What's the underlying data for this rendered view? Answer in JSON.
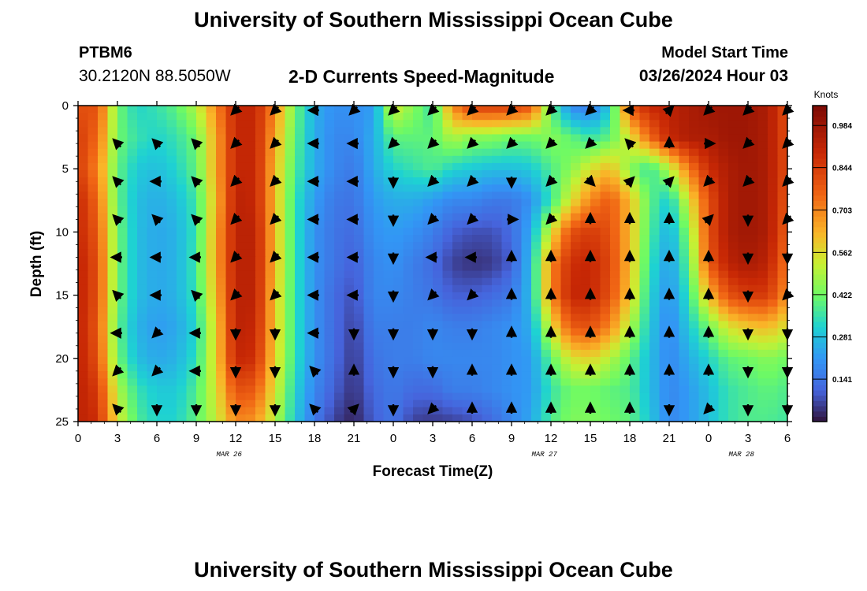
{
  "header": {
    "title": "University of Southern Mississippi Ocean Cube",
    "station_id": "PTBM6",
    "station_coords": "30.2120N  88.5050W",
    "plot_title": "2-D Currents Speed-Magnitude",
    "run_label": "Model Start Time",
    "run_value": "03/26/2024 Hour 03"
  },
  "footer": {
    "title": "University of Southern Mississippi Ocean Cube"
  },
  "chart_data": {
    "type": "heatmap",
    "xlabel": "Forecast Time(Z)",
    "ylabel": "Depth (ft)",
    "x_ticks": [
      "0",
      "3",
      "6",
      "9",
      "12",
      "15",
      "18",
      "21",
      "0",
      "3",
      "6",
      "9",
      "12",
      "15",
      "18",
      "21",
      "0",
      "3",
      "6"
    ],
    "x_range_hours": [
      0,
      54
    ],
    "date_labels": [
      {
        "label": "MAR 26",
        "hour": 11.5
      },
      {
        "label": "MAR 27",
        "hour": 35.5
      },
      {
        "label": "MAR 28",
        "hour": 50.5
      }
    ],
    "y_ticks": [
      0,
      5,
      10,
      15,
      20,
      25
    ],
    "y_range": [
      0,
      25
    ],
    "y_inverted": true,
    "colorbar": {
      "title": "Knots",
      "ticks": [
        "0.984",
        "0.844",
        "0.703",
        "0.562",
        "0.422",
        "0.281",
        "0.141"
      ],
      "tick_values": [
        0.984,
        0.844,
        0.703,
        0.562,
        0.422,
        0.281,
        0.141
      ],
      "min": 0.0,
      "max": 1.05
    },
    "speed_knots": {
      "hours": [
        0,
        1.5,
        3,
        4.5,
        6,
        7.5,
        9,
        10.5,
        12,
        13.5,
        15,
        16.5,
        18,
        19.5,
        21,
        22.5,
        24,
        25.5,
        27,
        28.5,
        30,
        31.5,
        33,
        34.5,
        36,
        37.5,
        39,
        40.5,
        42,
        43.5,
        45,
        46.5,
        48,
        49.5,
        51,
        52.5,
        54
      ],
      "depths": [
        0,
        2.5,
        5,
        7.5,
        10,
        12.5,
        15,
        17.5,
        20,
        22.5,
        25
      ],
      "rows": [
        [
          0.8,
          0.8,
          0.42,
          0.32,
          0.35,
          0.4,
          0.5,
          0.7,
          0.9,
          0.9,
          0.7,
          0.42,
          0.25,
          0.2,
          0.2,
          0.22,
          0.55,
          0.45,
          0.35,
          0.7,
          0.85,
          0.85,
          0.85,
          0.8,
          0.4,
          0.18,
          0.15,
          0.3,
          0.8,
          0.9,
          0.92,
          0.95,
          0.98,
          0.98,
          0.98,
          0.95,
          0.8
        ],
        [
          0.85,
          0.75,
          0.42,
          0.35,
          0.32,
          0.35,
          0.42,
          0.65,
          0.9,
          0.9,
          0.65,
          0.4,
          0.25,
          0.18,
          0.18,
          0.25,
          0.4,
          0.4,
          0.4,
          0.5,
          0.45,
          0.45,
          0.42,
          0.42,
          0.45,
          0.4,
          0.35,
          0.4,
          0.55,
          0.75,
          0.9,
          0.95,
          0.95,
          0.98,
          0.98,
          0.95,
          0.8
        ],
        [
          0.85,
          0.7,
          0.4,
          0.3,
          0.28,
          0.32,
          0.4,
          0.65,
          0.9,
          0.9,
          0.62,
          0.38,
          0.25,
          0.18,
          0.15,
          0.25,
          0.32,
          0.35,
          0.38,
          0.32,
          0.3,
          0.28,
          0.28,
          0.3,
          0.38,
          0.45,
          0.55,
          0.62,
          0.45,
          0.35,
          0.5,
          0.72,
          0.88,
          0.95,
          0.98,
          0.95,
          0.8
        ],
        [
          0.9,
          0.75,
          0.4,
          0.28,
          0.25,
          0.28,
          0.36,
          0.62,
          0.92,
          0.9,
          0.62,
          0.35,
          0.22,
          0.15,
          0.14,
          0.22,
          0.25,
          0.25,
          0.22,
          0.18,
          0.18,
          0.15,
          0.15,
          0.2,
          0.35,
          0.55,
          0.7,
          0.78,
          0.62,
          0.4,
          0.3,
          0.55,
          0.8,
          0.95,
          0.98,
          0.95,
          0.78
        ],
        [
          0.9,
          0.78,
          0.42,
          0.28,
          0.24,
          0.26,
          0.35,
          0.65,
          0.92,
          0.92,
          0.62,
          0.35,
          0.2,
          0.14,
          0.12,
          0.2,
          0.22,
          0.2,
          0.16,
          0.1,
          0.08,
          0.08,
          0.12,
          0.25,
          0.55,
          0.8,
          0.85,
          0.8,
          0.62,
          0.38,
          0.25,
          0.45,
          0.8,
          0.95,
          0.98,
          0.95,
          0.76
        ],
        [
          0.92,
          0.8,
          0.42,
          0.28,
          0.24,
          0.26,
          0.36,
          0.65,
          0.92,
          0.92,
          0.62,
          0.35,
          0.2,
          0.14,
          0.1,
          0.18,
          0.2,
          0.16,
          0.12,
          0.06,
          0.04,
          0.05,
          0.1,
          0.28,
          0.7,
          0.88,
          0.9,
          0.82,
          0.62,
          0.35,
          0.22,
          0.4,
          0.78,
          0.92,
          0.96,
          0.92,
          0.72
        ],
        [
          0.92,
          0.8,
          0.42,
          0.28,
          0.24,
          0.26,
          0.35,
          0.62,
          0.92,
          0.92,
          0.6,
          0.35,
          0.2,
          0.12,
          0.08,
          0.18,
          0.18,
          0.16,
          0.14,
          0.1,
          0.1,
          0.12,
          0.15,
          0.28,
          0.7,
          0.9,
          0.9,
          0.8,
          0.6,
          0.32,
          0.2,
          0.35,
          0.62,
          0.8,
          0.85,
          0.85,
          0.68
        ],
        [
          0.92,
          0.78,
          0.4,
          0.26,
          0.22,
          0.24,
          0.32,
          0.58,
          0.92,
          0.9,
          0.6,
          0.35,
          0.2,
          0.12,
          0.06,
          0.16,
          0.16,
          0.16,
          0.18,
          0.16,
          0.16,
          0.18,
          0.2,
          0.25,
          0.55,
          0.78,
          0.8,
          0.7,
          0.5,
          0.3,
          0.18,
          0.3,
          0.42,
          0.55,
          0.6,
          0.62,
          0.55
        ],
        [
          0.92,
          0.8,
          0.42,
          0.28,
          0.24,
          0.26,
          0.34,
          0.58,
          0.9,
          0.88,
          0.58,
          0.35,
          0.2,
          0.12,
          0.05,
          0.14,
          0.16,
          0.16,
          0.18,
          0.18,
          0.18,
          0.18,
          0.2,
          0.22,
          0.4,
          0.55,
          0.58,
          0.5,
          0.4,
          0.28,
          0.18,
          0.25,
          0.32,
          0.4,
          0.42,
          0.45,
          0.42
        ],
        [
          0.92,
          0.85,
          0.5,
          0.35,
          0.3,
          0.3,
          0.38,
          0.55,
          0.8,
          0.78,
          0.55,
          0.32,
          0.18,
          0.1,
          0.04,
          0.12,
          0.15,
          0.12,
          0.12,
          0.16,
          0.16,
          0.18,
          0.2,
          0.22,
          0.35,
          0.42,
          0.42,
          0.4,
          0.38,
          0.28,
          0.18,
          0.22,
          0.28,
          0.35,
          0.38,
          0.4,
          0.38
        ],
        [
          0.92,
          0.88,
          0.55,
          0.38,
          0.32,
          0.32,
          0.4,
          0.52,
          0.7,
          0.68,
          0.5,
          0.3,
          0.15,
          0.06,
          0.02,
          0.1,
          0.14,
          0.06,
          0.05,
          0.06,
          0.08,
          0.12,
          0.18,
          0.24,
          0.38,
          0.44,
          0.44,
          0.42,
          0.4,
          0.3,
          0.18,
          0.22,
          0.28,
          0.35,
          0.38,
          0.38,
          0.36
        ]
      ]
    },
    "vectors": {
      "hours": [
        3,
        6,
        9,
        12,
        15,
        18,
        21,
        24,
        27,
        30,
        33,
        36,
        39,
        42,
        45,
        48,
        51,
        54
      ],
      "depths": [
        0,
        3,
        6,
        9,
        12,
        15,
        18,
        21,
        24
      ],
      "dirs": [
        [
          null,
          null,
          null,
          "SW",
          "SW",
          "W",
          "SW",
          "SW",
          "SW",
          "SW",
          "SW",
          "SW",
          "SW",
          "W",
          "NE",
          "SW",
          "SW",
          "SW"
        ],
        [
          "NW",
          "NW",
          "NW",
          "SW",
          "SW",
          "W",
          "W",
          "SW",
          "SW",
          "SW",
          "SW",
          "SW",
          "SW",
          "NW",
          "N",
          "E",
          "SW",
          "SW"
        ],
        [
          "NW",
          "W",
          "NW",
          "SW",
          "SW",
          "W",
          "W",
          "S",
          "SW",
          "SW",
          "S",
          "SW",
          "SE",
          "NE",
          "NE",
          "SW",
          "SW",
          "SW"
        ],
        [
          "NW",
          "NW",
          "NW",
          "SW",
          "SW",
          "W",
          "W",
          "S",
          "SW",
          "SW",
          "E",
          "SW",
          "N",
          "N",
          "N",
          "NE",
          "S",
          "SW"
        ],
        [
          "W",
          "W",
          "W",
          "SW",
          "SW",
          "W",
          "W",
          "S",
          "W",
          "W",
          "N",
          "N",
          "N",
          "N",
          "N",
          "N",
          "S",
          "S"
        ],
        [
          "NW",
          "W",
          "NW",
          "SW",
          "SW",
          "W",
          "W",
          "S",
          "SW",
          "SW",
          "N",
          "N",
          "N",
          "N",
          "N",
          "N",
          "S",
          "SW"
        ],
        [
          "W",
          "SW",
          "W",
          "S",
          "S",
          "W",
          "S",
          "S",
          "S",
          "S",
          "N",
          "N",
          "N",
          "N",
          "N",
          "N",
          "S",
          "S"
        ],
        [
          "SW",
          "SW",
          "W",
          "S",
          "S",
          "NW",
          "N",
          "S",
          "S",
          "N",
          "N",
          "N",
          "N",
          "N",
          "N",
          "N",
          "S",
          "S"
        ],
        [
          "NW",
          "S",
          "S",
          "S",
          "S",
          "NW",
          "NE",
          "S",
          "SW",
          "N",
          "N",
          "N",
          "N",
          "N",
          "S",
          "SW",
          "S",
          "S"
        ]
      ]
    }
  }
}
